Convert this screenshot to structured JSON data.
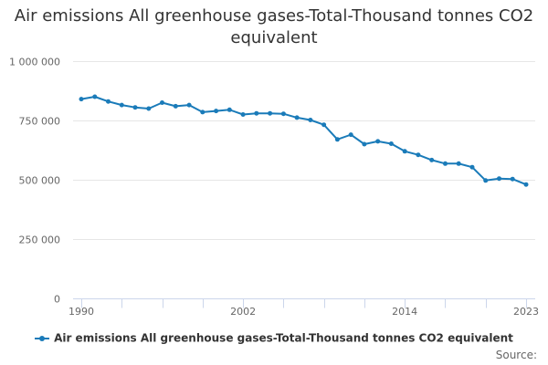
{
  "title": "Air emissions All greenhouse gases-Total-Thousand tonnes CO2 equivalent",
  "credits": "Source:",
  "colors": {
    "series": "#1a7bb9",
    "grid": "#e6e6e6",
    "axis_text": "#666666",
    "axis_line": "#ccd6eb"
  },
  "chart_data": {
    "type": "line",
    "title": "Air emissions All greenhouse gases-Total-Thousand tonnes CO2 equivalent",
    "xlabel": "",
    "ylabel": "",
    "x_tick_labels": [
      "1990",
      "2002",
      "2014",
      "2023"
    ],
    "y_tick_labels": [
      "0",
      "250 000",
      "500 000",
      "750 000",
      "1 000 000"
    ],
    "y_ticks": [
      0,
      250000,
      500000,
      750000,
      1000000
    ],
    "ylim": [
      0,
      1000000
    ],
    "xlim": [
      1990,
      2023
    ],
    "grid": true,
    "legend_position": "bottom-center",
    "series": [
      {
        "name": "Air emissions All greenhouse gases-Total-Thousand tonnes CO2 equivalent",
        "x": [
          1990,
          1991,
          1992,
          1993,
          1994,
          1995,
          1996,
          1997,
          1998,
          1999,
          2000,
          2001,
          2002,
          2003,
          2004,
          2005,
          2006,
          2007,
          2008,
          2009,
          2010,
          2011,
          2012,
          2013,
          2014,
          2015,
          2016,
          2017,
          2018,
          2019,
          2020,
          2021,
          2022,
          2023
        ],
        "values": [
          840000,
          850000,
          830000,
          815000,
          805000,
          800000,
          825000,
          810000,
          815000,
          785000,
          790000,
          795000,
          775000,
          780000,
          780000,
          778000,
          762000,
          752000,
          732000,
          670000,
          690000,
          650000,
          662000,
          652000,
          620000,
          605000,
          583000,
          568000,
          568000,
          553000,
          497000,
          505000,
          503000,
          480000
        ]
      }
    ]
  }
}
